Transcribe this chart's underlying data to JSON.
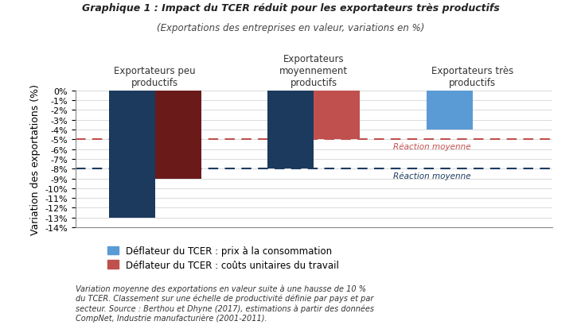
{
  "title_bold": "Graphique 1 : Impact du TCER réduit pour les exportateurs très productifs",
  "title_italic": "(Exportations des entreprises en valeur, variations en %)",
  "ylabel": "Variation des exportations (%)",
  "groups": [
    "Exportateurs peu\nproductifs",
    "Exportateurs\nmoyennement\nproductifs",
    "Exportateurs très\nproductifs"
  ],
  "blue_values": [
    -13.0,
    -8.0,
    -4.0
  ],
  "red_values": [
    -9.0,
    -5.0,
    0.5
  ],
  "blue_color_g1": "#1C3A5E",
  "blue_color_g2": "#1C3A5E",
  "blue_color_g3": "#5B9BD5",
  "red_color_g1": "#6B1A1A",
  "red_color_g2": "#C0504D",
  "red_color_g3": "#F2C4C4",
  "hline_red": -5.0,
  "hline_blue": -8.0,
  "hline_red_color": "#C0504D",
  "hline_blue_color": "#1C3A5E",
  "ylim": [
    -14,
    0
  ],
  "yticks": [
    0,
    -1,
    -2,
    -3,
    -4,
    -5,
    -6,
    -7,
    -8,
    -9,
    -10,
    -11,
    -12,
    -13,
    -14
  ],
  "ytick_labels": [
    "0%",
    "-1%",
    "-2%",
    "-3%",
    "-4%",
    "-5%",
    "-6%",
    "-7%",
    "-8%",
    "-9%",
    "-10%",
    "-11%",
    "-12%",
    "-13%",
    "-14%"
  ],
  "legend_blue_label": "Déflateur du TCER : prix à la consommation",
  "legend_red_label": "Déflateur du TCER : coûts unitaires du travail",
  "legend_blue_color": "#5B9BD5",
  "legend_red_color": "#C0504D",
  "footnote": "Variation moyenne des exportations en valeur suite à une hausse de 10 %\ndu TCER. Classement sur une échelle de productivité définie par pays et par\nsecteur. Source : Berthou et Dhyne (2017), estimations à partir des données\nCompNet, Industrie manufacturière (2001-2011).",
  "bg_color": "#FFFFFF",
  "bar_width": 0.32,
  "x_positions": [
    0.0,
    1.1,
    2.2
  ]
}
